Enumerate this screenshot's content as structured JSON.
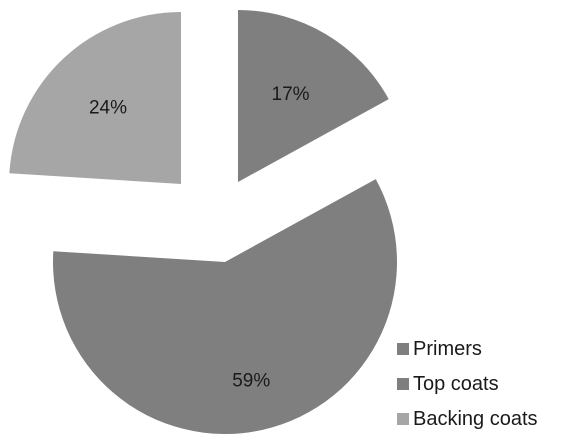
{
  "chart_data": {
    "type": "pie",
    "exploded": true,
    "categories": [
      "Primers",
      "Top coats",
      "Backing coats"
    ],
    "values": [
      17,
      59,
      24
    ],
    "value_labels": [
      "17%",
      "59%",
      "24%"
    ],
    "colors": [
      "#7f7f7f",
      "#7f7f7f",
      "#a6a6a6"
    ],
    "legend_position": "bottom-right",
    "legend": [
      "Primers",
      "Top coats",
      "Backing coats"
    ]
  }
}
